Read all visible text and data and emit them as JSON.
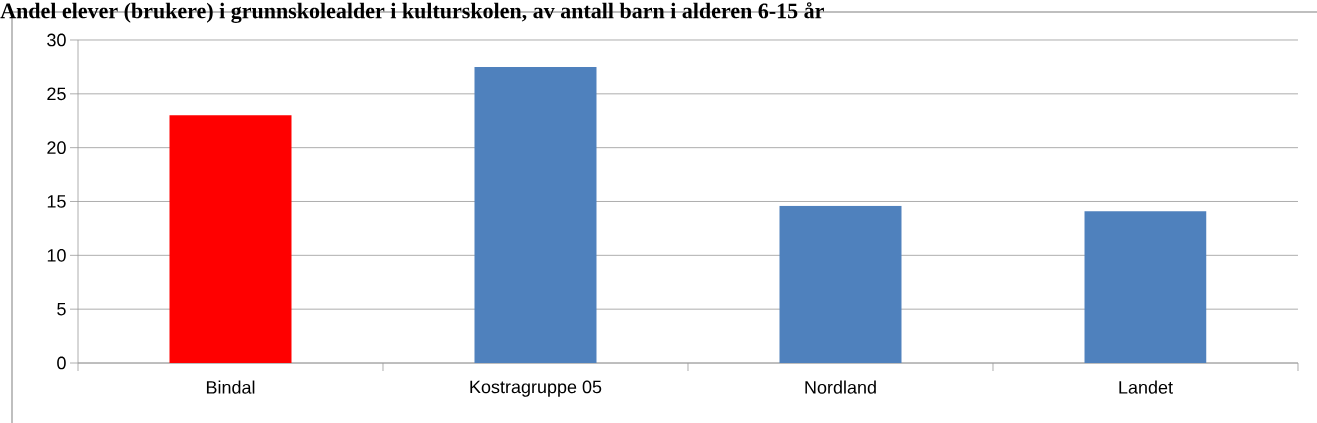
{
  "chart_data": {
    "type": "bar",
    "title": "Andel elever (brukere) i grunnskolealder i kulturskolen, av antall barn i alderen 6-15 år",
    "categories": [
      "Bindal",
      "Kostragruppe 05",
      "Nordland",
      "Landet"
    ],
    "values": [
      23.0,
      27.5,
      14.6,
      14.1
    ],
    "colors": [
      "#ff0000",
      "#4f81bd",
      "#4f81bd",
      "#4f81bd"
    ],
    "ylim": [
      0,
      30
    ],
    "yticks": [
      0,
      5,
      10,
      15,
      20,
      25,
      30
    ],
    "grid": "y"
  }
}
